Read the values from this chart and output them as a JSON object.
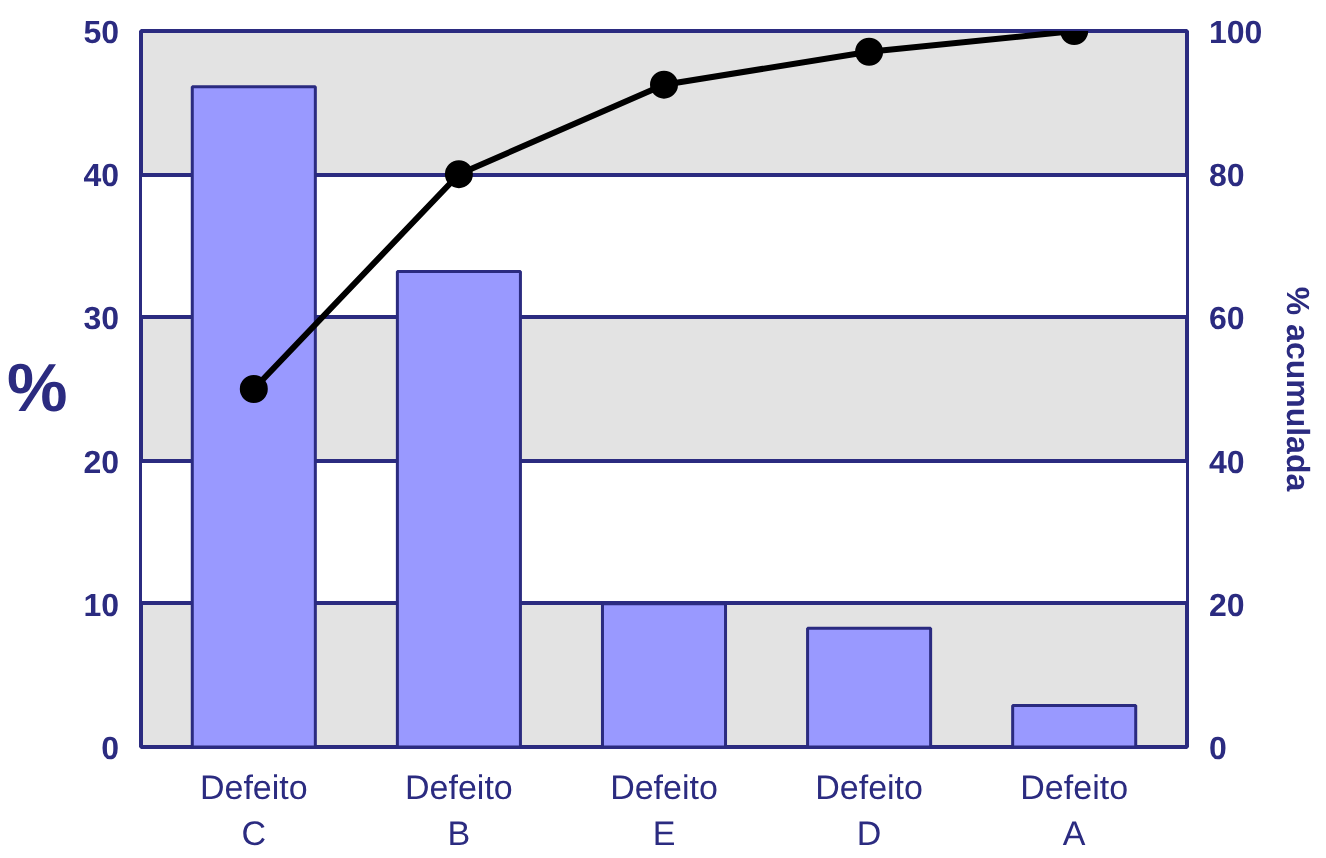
{
  "chart_data": {
    "type": "bar",
    "ylabel": "%",
    "y2label": "% acumulada",
    "categories": [
      "Defeito\nC",
      "Defeito\nB",
      "Defeito\nE",
      "Defeito\nD",
      "Defeito\nA"
    ],
    "series": [
      {
        "color": "#9999ff",
        "values": [
          46.1,
          33.2,
          10.0,
          8.3,
          2.9
        ]
      },
      {
        "type": "line",
        "axis": "y2",
        "color": "#000000",
        "marker": "circle",
        "values": [
          50,
          80,
          92.5,
          97.1,
          100
        ]
      }
    ],
    "ylim": [
      0,
      50
    ],
    "yticks": [
      0,
      10,
      20,
      30,
      40,
      50
    ],
    "y2lim": [
      0,
      100
    ],
    "y2ticks": [
      0,
      20,
      40,
      60,
      80,
      100
    ],
    "grid": "y"
  }
}
